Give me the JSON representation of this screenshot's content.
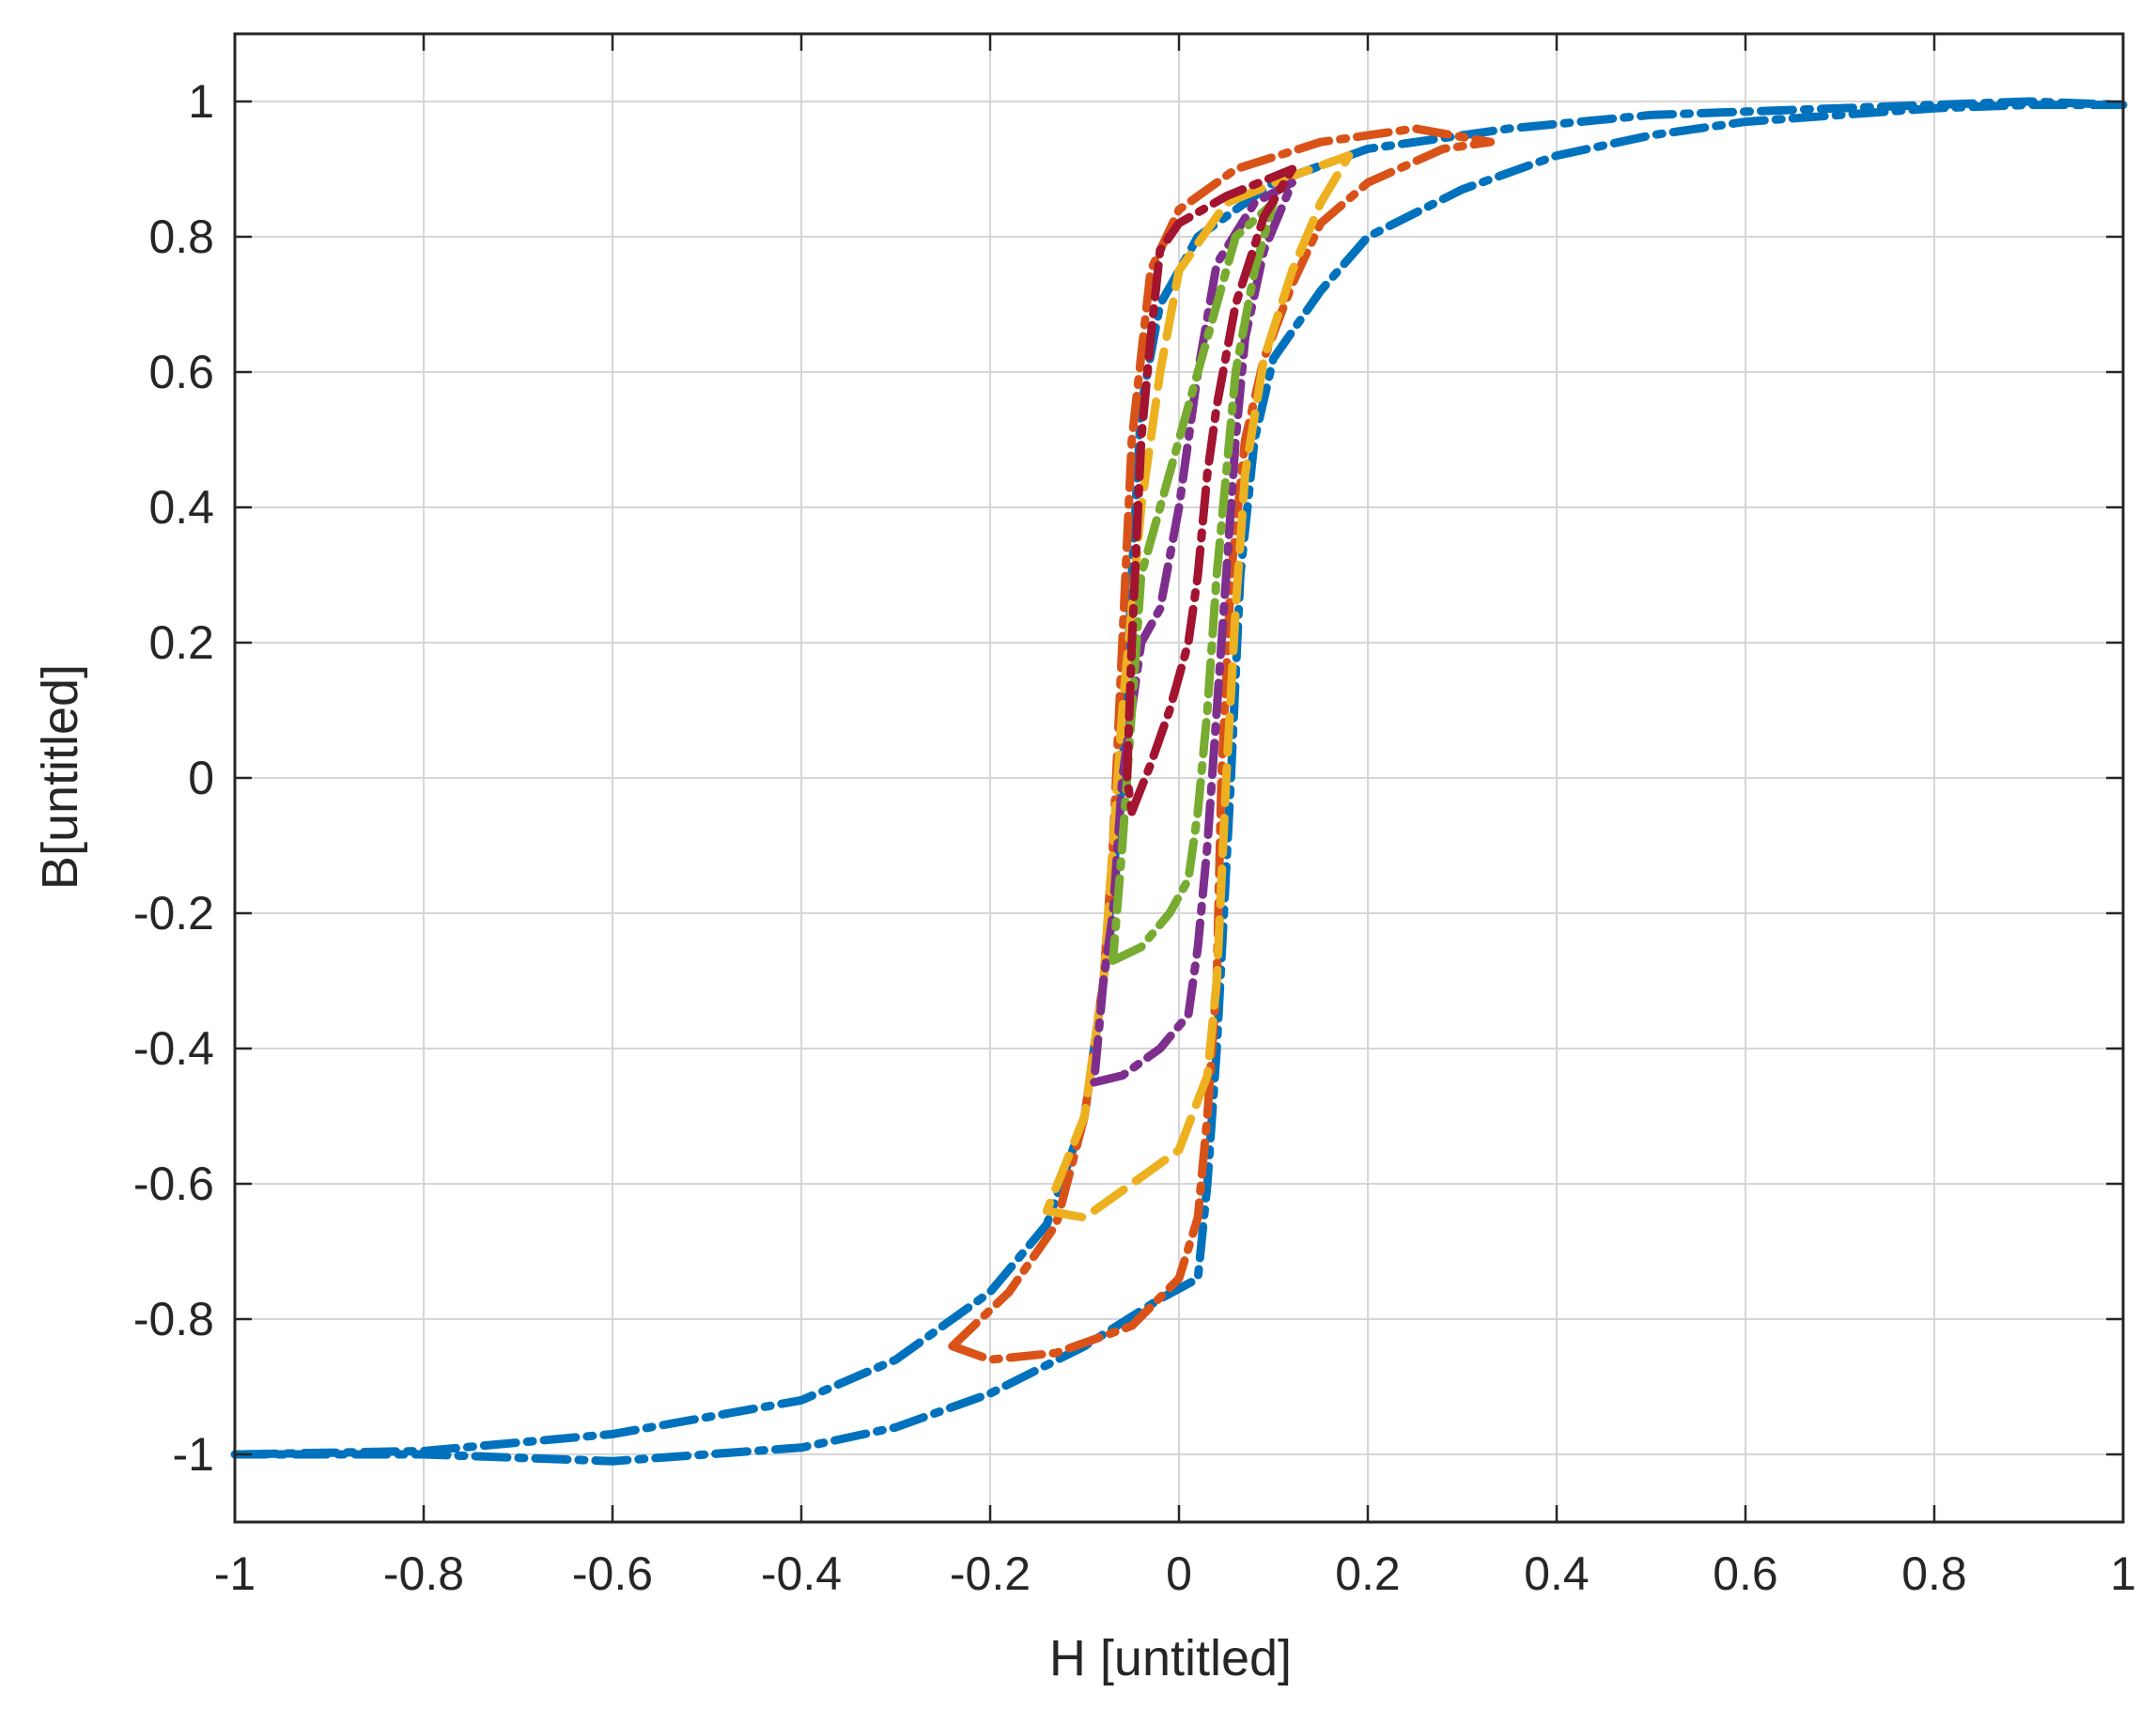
{
  "chart_data": {
    "type": "line",
    "title": "",
    "xlabel": "H [untitled]",
    "ylabel": "B[untitled]",
    "xlim": [
      -1,
      1
    ],
    "ylim": [
      -1.1,
      1.1
    ],
    "xticks": [
      -1,
      -0.8,
      -0.6,
      -0.4,
      -0.2,
      0,
      0.2,
      0.4,
      0.6,
      0.8,
      1
    ],
    "xtick_labels": [
      "-1",
      "-0.8",
      "-0.6",
      "-0.4",
      "-0.2",
      "0",
      "0.2",
      "0.4",
      "0.6",
      "0.8",
      "1"
    ],
    "yticks": [
      -1,
      -0.8,
      -0.6,
      -0.4,
      -0.2,
      0,
      0.2,
      0.4,
      0.6,
      0.8,
      1
    ],
    "ytick_labels": [
      "-1",
      "-0.8",
      "-0.6",
      "-0.4",
      "-0.2",
      "0",
      "0.2",
      "0.4",
      "0.6",
      "0.8",
      "1"
    ],
    "grid": true,
    "legend": "none",
    "series": [
      {
        "color": "#0072BD",
        "dash": "dash-dot",
        "points": [
          [
            -1,
            -1
          ],
          [
            -0.8,
            -1.0
          ],
          [
            -0.6,
            -1.01
          ],
          [
            -0.4,
            -0.99
          ],
          [
            -0.3,
            -0.96
          ],
          [
            -0.2,
            -0.91
          ],
          [
            -0.1,
            -0.84
          ],
          [
            -0.02,
            -0.77
          ],
          [
            0.02,
            -0.74
          ],
          [
            0.03,
            -0.6
          ],
          [
            0.04,
            -0.4
          ],
          [
            0.055,
            0.0
          ],
          [
            0.065,
            0.3
          ],
          [
            0.08,
            0.5
          ],
          [
            0.1,
            0.62
          ],
          [
            0.15,
            0.72
          ],
          [
            0.2,
            0.8
          ],
          [
            0.3,
            0.87
          ],
          [
            0.4,
            0.92
          ],
          [
            0.5,
            0.95
          ],
          [
            0.6,
            0.97
          ],
          [
            0.7,
            0.98
          ],
          [
            0.8,
            0.99
          ],
          [
            0.9,
            0.995
          ],
          [
            1,
            0.995
          ],
          [
            0.9,
            1.0
          ],
          [
            0.7,
            0.99
          ],
          [
            0.5,
            0.98
          ],
          [
            0.35,
            0.96
          ],
          [
            0.2,
            0.93
          ],
          [
            0.1,
            0.88
          ],
          [
            0.02,
            0.8
          ],
          [
            -0.02,
            0.7
          ],
          [
            -0.04,
            0.55
          ],
          [
            -0.05,
            0.3
          ],
          [
            -0.06,
            0.0
          ],
          [
            -0.08,
            -0.3
          ],
          [
            -0.1,
            -0.5
          ],
          [
            -0.14,
            -0.66
          ],
          [
            -0.2,
            -0.76
          ],
          [
            -0.3,
            -0.86
          ],
          [
            -0.4,
            -0.92
          ],
          [
            -0.6,
            -0.97
          ],
          [
            -0.8,
            -0.995
          ],
          [
            -1,
            -1
          ]
        ]
      },
      {
        "color": "#D95319",
        "dash": "dash-dot",
        "points": [
          [
            -0.24,
            -0.84
          ],
          [
            -0.2,
            -0.86
          ],
          [
            -0.13,
            -0.85
          ],
          [
            -0.05,
            -0.81
          ],
          [
            0.0,
            -0.74
          ],
          [
            0.02,
            -0.65
          ],
          [
            0.03,
            -0.5
          ],
          [
            0.04,
            -0.3
          ],
          [
            0.045,
            0.0
          ],
          [
            0.055,
            0.3
          ],
          [
            0.07,
            0.5
          ],
          [
            0.09,
            0.62
          ],
          [
            0.12,
            0.73
          ],
          [
            0.15,
            0.82
          ],
          [
            0.2,
            0.88
          ],
          [
            0.28,
            0.93
          ],
          [
            0.33,
            0.94
          ],
          [
            0.25,
            0.96
          ],
          [
            0.15,
            0.94
          ],
          [
            0.06,
            0.9
          ],
          [
            0.0,
            0.84
          ],
          [
            -0.03,
            0.75
          ],
          [
            -0.05,
            0.5
          ],
          [
            -0.06,
            0.2
          ],
          [
            -0.07,
            -0.1
          ],
          [
            -0.08,
            -0.3
          ],
          [
            -0.1,
            -0.5
          ],
          [
            -0.13,
            -0.66
          ],
          [
            -0.18,
            -0.76
          ],
          [
            -0.24,
            -0.84
          ]
        ]
      },
      {
        "color": "#EDB120",
        "dash": "dash",
        "points": [
          [
            -0.14,
            -0.64
          ],
          [
            -0.1,
            -0.65
          ],
          [
            -0.05,
            -0.6
          ],
          [
            0.0,
            -0.55
          ],
          [
            0.03,
            -0.44
          ],
          [
            0.04,
            -0.3
          ],
          [
            0.05,
            0.0
          ],
          [
            0.06,
            0.25
          ],
          [
            0.07,
            0.45
          ],
          [
            0.09,
            0.62
          ],
          [
            0.12,
            0.75
          ],
          [
            0.15,
            0.85
          ],
          [
            0.18,
            0.92
          ],
          [
            0.12,
            0.89
          ],
          [
            0.05,
            0.85
          ],
          [
            0.0,
            0.75
          ],
          [
            -0.02,
            0.6
          ],
          [
            -0.04,
            0.4
          ],
          [
            -0.06,
            0.1
          ],
          [
            -0.07,
            -0.1
          ],
          [
            -0.08,
            -0.3
          ],
          [
            -0.1,
            -0.5
          ],
          [
            -0.14,
            -0.64
          ]
        ]
      },
      {
        "color": "#7E2F8E",
        "dash": "dash-dot",
        "points": [
          [
            -0.09,
            -0.45
          ],
          [
            -0.06,
            -0.44
          ],
          [
            -0.02,
            -0.4
          ],
          [
            0.01,
            -0.35
          ],
          [
            0.02,
            -0.25
          ],
          [
            0.03,
            -0.1
          ],
          [
            0.04,
            0.1
          ],
          [
            0.05,
            0.3
          ],
          [
            0.06,
            0.5
          ],
          [
            0.07,
            0.65
          ],
          [
            0.09,
            0.78
          ],
          [
            0.12,
            0.88
          ],
          [
            0.08,
            0.85
          ],
          [
            0.04,
            0.76
          ],
          [
            0.02,
            0.6
          ],
          [
            0.0,
            0.4
          ],
          [
            -0.02,
            0.25
          ],
          [
            -0.04,
            0.2
          ],
          [
            -0.06,
            0.0
          ],
          [
            -0.07,
            -0.2
          ],
          [
            -0.08,
            -0.3
          ],
          [
            -0.09,
            -0.45
          ]
        ]
      },
      {
        "color": "#77AC30",
        "dash": "dash-dot",
        "points": [
          [
            -0.07,
            -0.27
          ],
          [
            -0.04,
            -0.25
          ],
          [
            -0.01,
            -0.2
          ],
          [
            0.01,
            -0.15
          ],
          [
            0.02,
            -0.05
          ],
          [
            0.03,
            0.1
          ],
          [
            0.04,
            0.3
          ],
          [
            0.05,
            0.45
          ],
          [
            0.06,
            0.6
          ],
          [
            0.08,
            0.75
          ],
          [
            0.1,
            0.85
          ],
          [
            0.06,
            0.8
          ],
          [
            0.04,
            0.7
          ],
          [
            0.02,
            0.6
          ],
          [
            0.0,
            0.5
          ],
          [
            -0.02,
            0.4
          ],
          [
            -0.04,
            0.3
          ],
          [
            -0.05,
            0.1
          ],
          [
            -0.06,
            -0.1
          ],
          [
            -0.07,
            -0.27
          ]
        ]
      },
      {
        "color": "#A2142F",
        "dash": "dash-dot",
        "points": [
          [
            -0.05,
            -0.05
          ],
          [
            -0.03,
            0.02
          ],
          [
            -0.01,
            0.1
          ],
          [
            0.01,
            0.2
          ],
          [
            0.02,
            0.3
          ],
          [
            0.03,
            0.45
          ],
          [
            0.04,
            0.55
          ],
          [
            0.06,
            0.7
          ],
          [
            0.09,
            0.83
          ],
          [
            0.12,
            0.9
          ],
          [
            0.05,
            0.86
          ],
          [
            0.0,
            0.82
          ],
          [
            -0.02,
            0.78
          ],
          [
            -0.03,
            0.65
          ],
          [
            -0.04,
            0.5
          ],
          [
            -0.045,
            0.35
          ],
          [
            -0.05,
            0.2
          ],
          [
            -0.055,
            0.0
          ],
          [
            -0.05,
            -0.05
          ]
        ]
      }
    ]
  }
}
